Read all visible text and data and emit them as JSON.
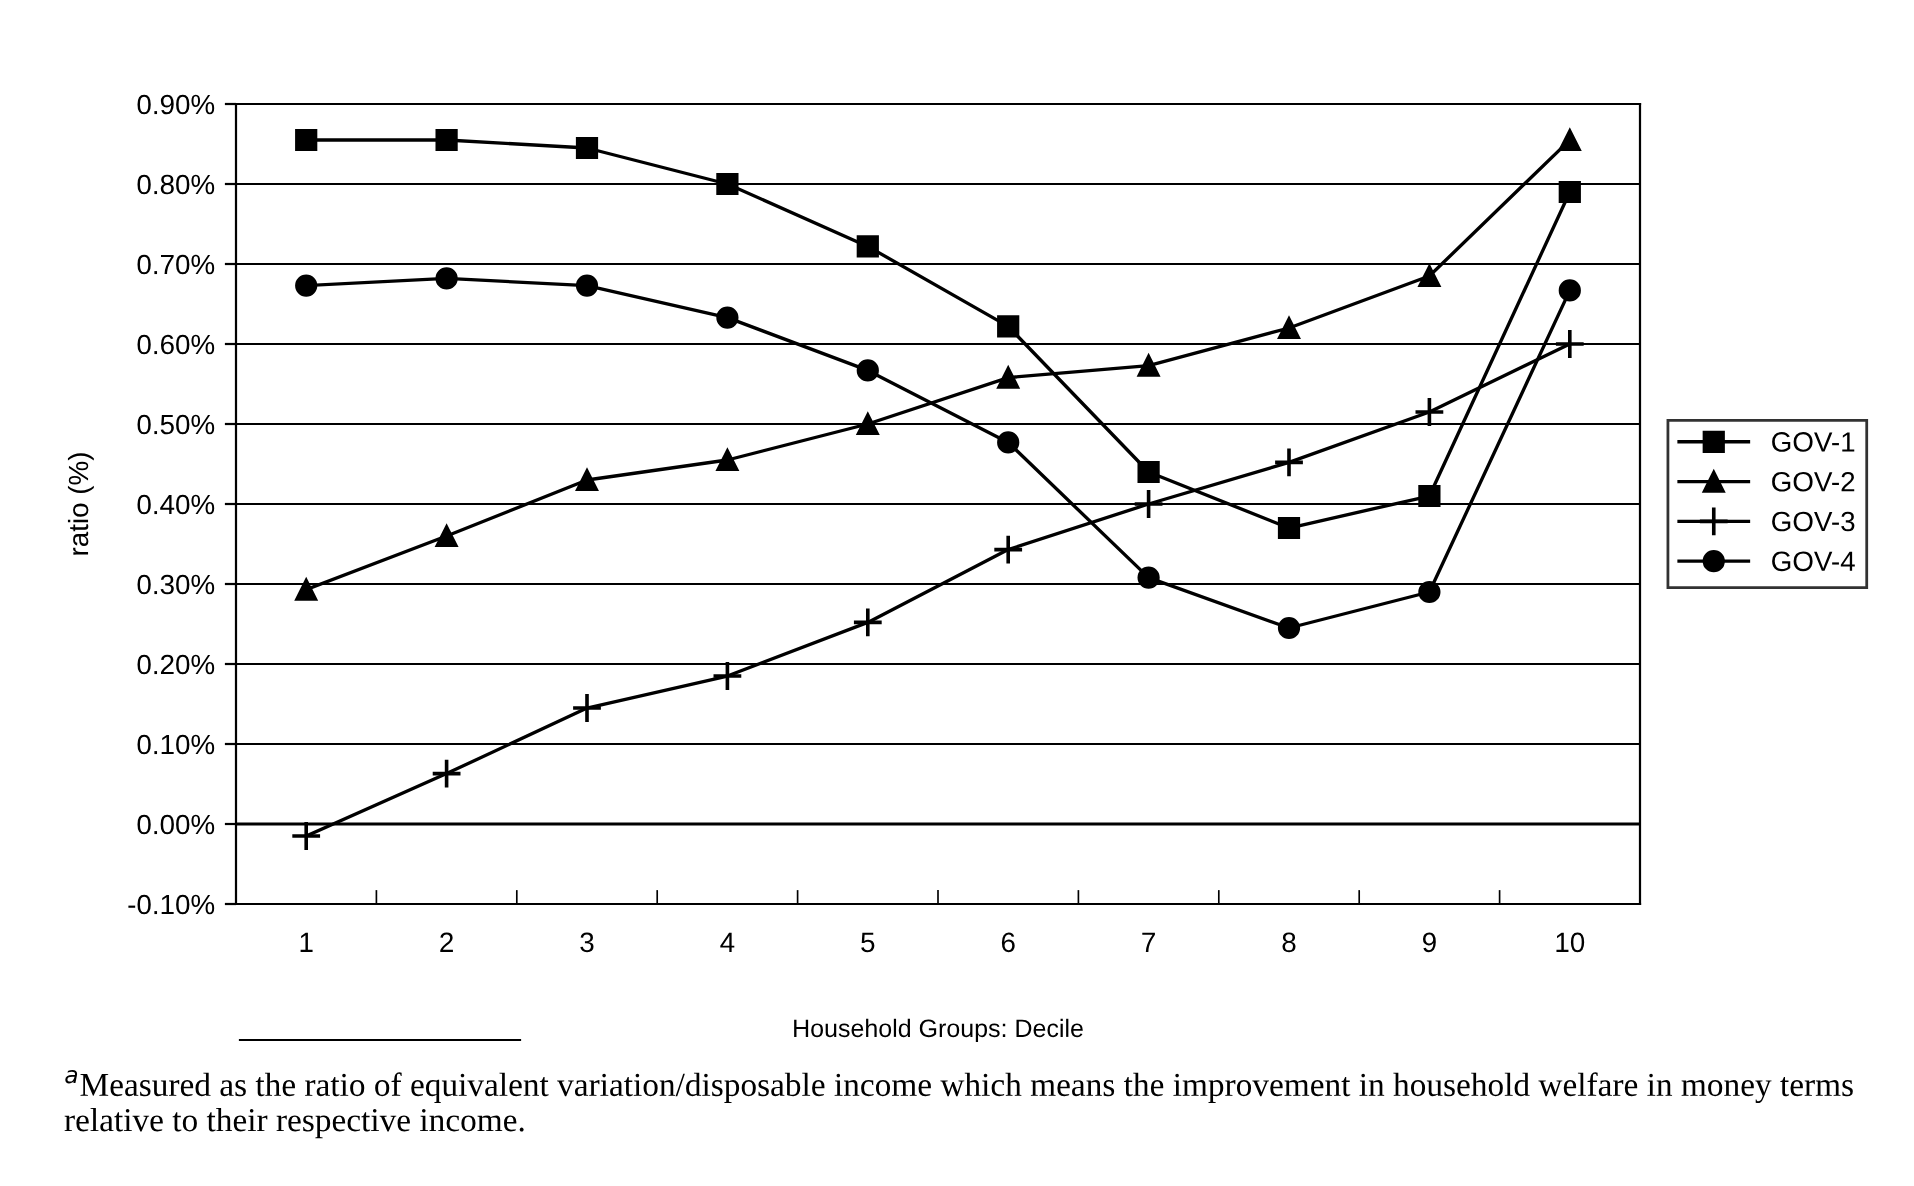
{
  "chart_data": {
    "type": "line",
    "xlabel": "Household Groups: Decile",
    "ylabel": "ratio (%)",
    "categories": [
      "1",
      "2",
      "3",
      "4",
      "5",
      "6",
      "7",
      "8",
      "9",
      "10"
    ],
    "series": [
      {
        "name": "GOV-1",
        "color": "#000000",
        "marker": "square",
        "values": [
          0.855,
          0.855,
          0.845,
          0.8,
          0.722,
          0.622,
          0.44,
          0.37,
          0.41,
          0.79
        ]
      },
      {
        "name": "GOV-2",
        "color": "#000000",
        "marker": "triangle",
        "values": [
          0.293,
          0.36,
          0.43,
          0.455,
          0.5,
          0.558,
          0.573,
          0.62,
          0.685,
          0.855
        ]
      },
      {
        "name": "GOV-3",
        "color": "#000000",
        "marker": "cross",
        "values": [
          -0.015,
          0.063,
          0.145,
          0.185,
          0.252,
          0.343,
          0.4,
          0.452,
          0.515,
          0.6
        ]
      },
      {
        "name": "GOV-4",
        "color": "#000000",
        "marker": "circle",
        "values": [
          0.673,
          0.682,
          0.673,
          0.633,
          0.567,
          0.477,
          0.308,
          0.245,
          0.29,
          0.667
        ]
      }
    ],
    "ylim": [
      -0.1,
      0.9
    ],
    "yticks": [
      {
        "value": -0.1,
        "label": "-0.10%"
      },
      {
        "value": 0,
        "label": "0.00%"
      },
      {
        "value": 0.1,
        "label": "0.10%"
      },
      {
        "value": 0.2,
        "label": "0.20%"
      },
      {
        "value": 0.3,
        "label": "0.30%"
      },
      {
        "value": 0.4,
        "label": "0.40%"
      },
      {
        "value": 0.5,
        "label": "0.50%"
      },
      {
        "value": 0.6,
        "label": "0.60%"
      },
      {
        "value": 0.7,
        "label": "0.70%"
      },
      {
        "value": 0.8,
        "label": "0.80%"
      },
      {
        "value": 0.9,
        "label": "0.90%"
      }
    ],
    "grid": "y",
    "legend": "right",
    "line_style": "solid",
    "annotations": [
      "$^{a}$Measured as the ratio of equivalent variation/disposable income which means the improvement in household welfare in money terms relative to their respective income."
    ]
  }
}
